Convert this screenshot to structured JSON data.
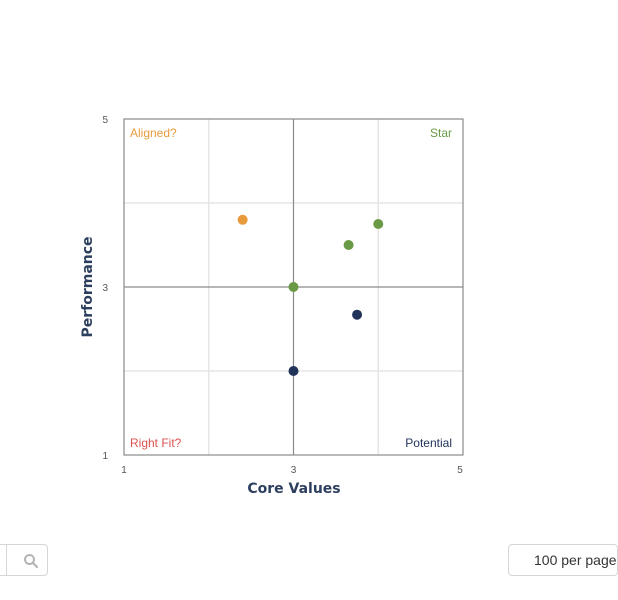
{
  "chart_data": {
    "type": "scatter",
    "xlabel": "Core Values",
    "ylabel": "Performance",
    "xlim": [
      1,
      5
    ],
    "ylim": [
      1,
      5
    ],
    "x_ticks": [
      "1",
      "3",
      "5"
    ],
    "y_ticks": [
      "1",
      "3",
      "5"
    ],
    "grid": true,
    "quadrants": {
      "top_left": {
        "label": "Aligned?",
        "color": "#e89a3c"
      },
      "top_right": {
        "label": "Star",
        "color": "#6a9a45"
      },
      "bottom_left": {
        "label": "Right Fit?",
        "color": "#d9534f"
      },
      "bottom_right": {
        "label": "Potential",
        "color": "#22335a"
      }
    },
    "points": [
      {
        "x": 2.4,
        "y": 3.8,
        "color": "#e89a3c"
      },
      {
        "x": 3.65,
        "y": 3.5,
        "color": "#6a9a45"
      },
      {
        "x": 4.0,
        "y": 3.75,
        "color": "#6a9a45"
      },
      {
        "x": 3.0,
        "y": 3.0,
        "color": "#6a9a45"
      },
      {
        "x": 3.75,
        "y": 2.67,
        "color": "#22335a"
      },
      {
        "x": 3.0,
        "y": 2.0,
        "color": "#22335a"
      }
    ]
  },
  "controls": {
    "search_icon": "search-icon",
    "per_page_label": "100 per page"
  }
}
